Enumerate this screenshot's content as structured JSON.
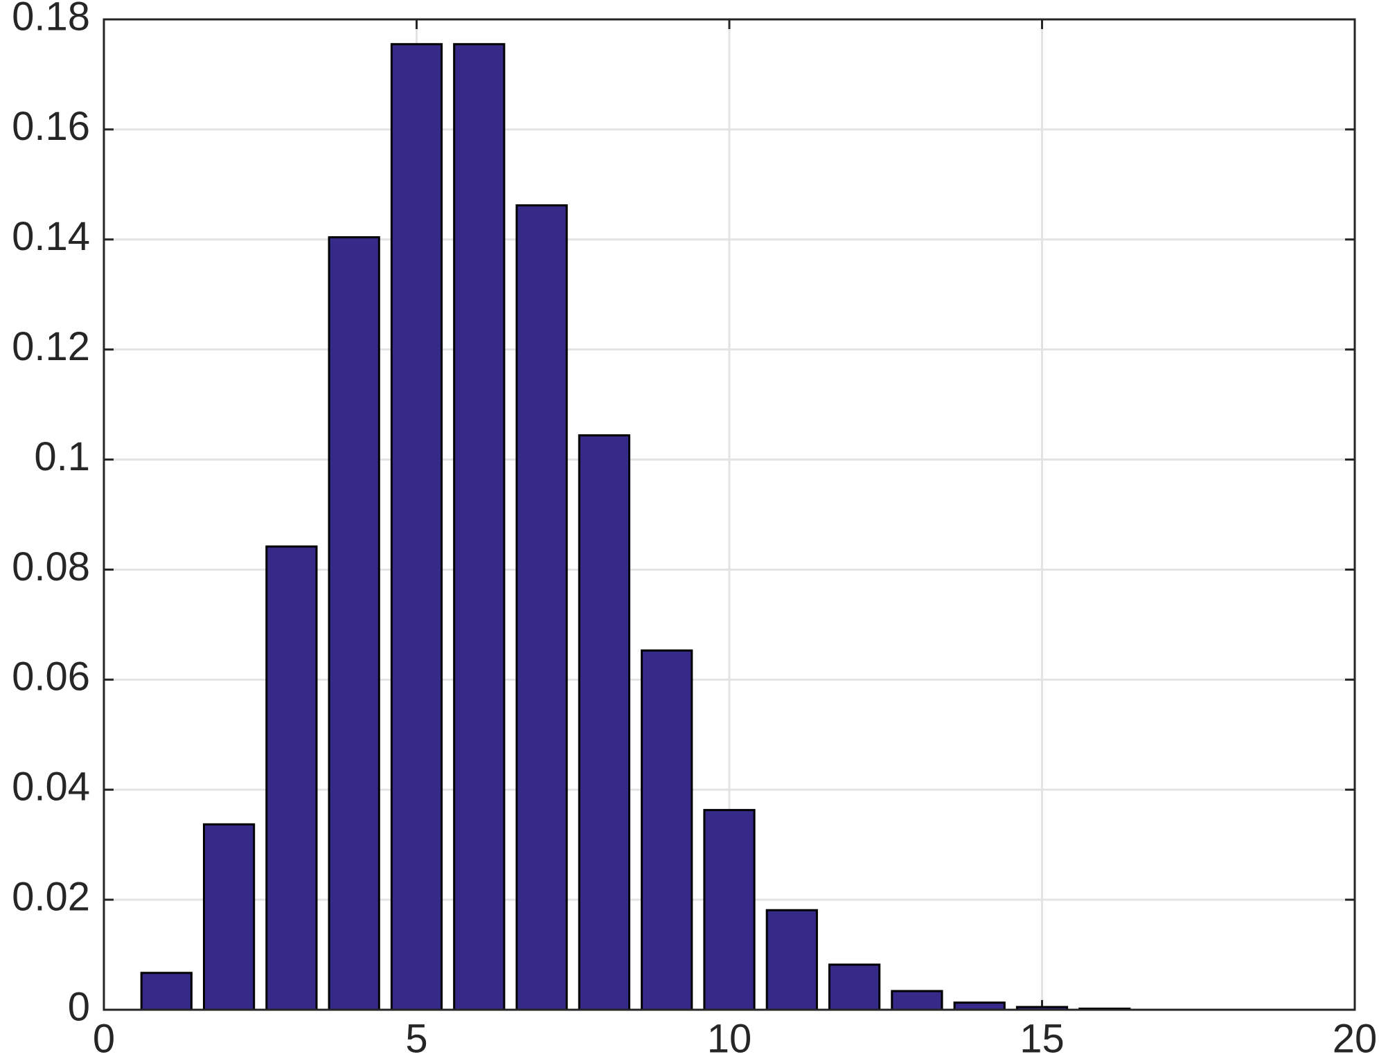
{
  "chart_data": {
    "type": "bar",
    "x": [
      1,
      2,
      3,
      4,
      5,
      6,
      7,
      8,
      9,
      10,
      11,
      12,
      13,
      14,
      15,
      16
    ],
    "values": [
      0.0067,
      0.0337,
      0.0842,
      0.1404,
      0.1755,
      0.1755,
      0.1462,
      0.1044,
      0.0653,
      0.0363,
      0.0181,
      0.0082,
      0.0034,
      0.0013,
      0.0005,
      0.0002
    ],
    "color": "#352a87",
    "xlim": [
      0,
      20
    ],
    "xticks": [
      0,
      5,
      10,
      15,
      20
    ],
    "ylim": [
      0,
      0.18
    ],
    "yticks": [
      0,
      0.02,
      0.04,
      0.06,
      0.08,
      0.1,
      0.12,
      0.14,
      0.16,
      0.18
    ],
    "grid": true
  }
}
